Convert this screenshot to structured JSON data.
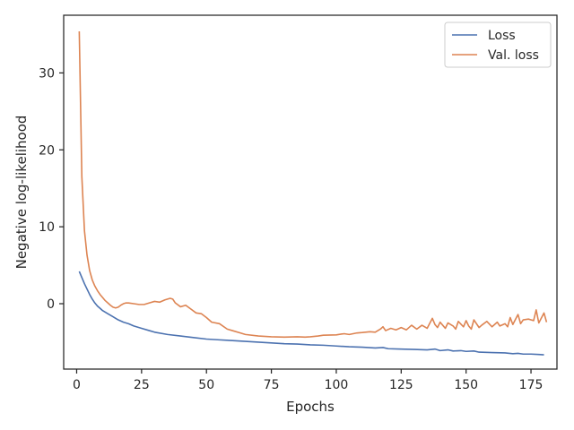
{
  "chart_data": {
    "type": "line",
    "title": "",
    "xlabel": "Epochs",
    "ylabel": "Negative log-likelihood",
    "xlim": [
      -5,
      185
    ],
    "ylim": [
      -8.5,
      37.5
    ],
    "xticks": [
      0,
      25,
      50,
      75,
      100,
      125,
      150,
      175
    ],
    "yticks": [
      0,
      10,
      20,
      30
    ],
    "grid": false,
    "legend_position": "top-right",
    "series": [
      {
        "name": "Loss",
        "color": "#4c72b0",
        "points": [
          [
            1,
            4.2
          ],
          [
            2,
            3.4
          ],
          [
            3,
            2.6
          ],
          [
            4,
            1.9
          ],
          [
            5,
            1.2
          ],
          [
            6,
            0.6
          ],
          [
            7,
            0.1
          ],
          [
            8,
            -0.3
          ],
          [
            9,
            -0.6
          ],
          [
            10,
            -0.9
          ],
          [
            12,
            -1.3
          ],
          [
            14,
            -1.7
          ],
          [
            16,
            -2.1
          ],
          [
            18,
            -2.4
          ],
          [
            20,
            -2.6
          ],
          [
            22,
            -2.9
          ],
          [
            25,
            -3.2
          ],
          [
            28,
            -3.5
          ],
          [
            30,
            -3.7
          ],
          [
            35,
            -4.0
          ],
          [
            40,
            -4.2
          ],
          [
            45,
            -4.4
          ],
          [
            50,
            -4.6
          ],
          [
            55,
            -4.7
          ],
          [
            60,
            -4.8
          ],
          [
            65,
            -4.9
          ],
          [
            70,
            -5.0
          ],
          [
            75,
            -5.1
          ],
          [
            80,
            -5.2
          ],
          [
            85,
            -5.25
          ],
          [
            90,
            -5.35
          ],
          [
            95,
            -5.4
          ],
          [
            100,
            -5.5
          ],
          [
            105,
            -5.6
          ],
          [
            110,
            -5.65
          ],
          [
            115,
            -5.75
          ],
          [
            118,
            -5.7
          ],
          [
            120,
            -5.85
          ],
          [
            125,
            -5.9
          ],
          [
            130,
            -5.95
          ],
          [
            135,
            -6.0
          ],
          [
            138,
            -5.9
          ],
          [
            140,
            -6.1
          ],
          [
            143,
            -6.0
          ],
          [
            145,
            -6.15
          ],
          [
            148,
            -6.1
          ],
          [
            150,
            -6.2
          ],
          [
            153,
            -6.15
          ],
          [
            155,
            -6.3
          ],
          [
            160,
            -6.35
          ],
          [
            165,
            -6.4
          ],
          [
            168,
            -6.5
          ],
          [
            170,
            -6.45
          ],
          [
            172,
            -6.55
          ],
          [
            175,
            -6.55
          ],
          [
            178,
            -6.6
          ],
          [
            180,
            -6.65
          ]
        ]
      },
      {
        "name": "Val. loss",
        "color": "#dd8452",
        "points": [
          [
            1,
            35.4
          ],
          [
            2,
            16.5
          ],
          [
            3,
            9.5
          ],
          [
            4,
            6.3
          ],
          [
            5,
            4.3
          ],
          [
            6,
            3.1
          ],
          [
            7,
            2.3
          ],
          [
            8,
            1.7
          ],
          [
            9,
            1.2
          ],
          [
            10,
            0.8
          ],
          [
            11,
            0.4
          ],
          [
            12,
            0.1
          ],
          [
            13,
            -0.2
          ],
          [
            14,
            -0.45
          ],
          [
            15,
            -0.55
          ],
          [
            16,
            -0.45
          ],
          [
            17,
            -0.2
          ],
          [
            18,
            0.0
          ],
          [
            19,
            0.1
          ],
          [
            20,
            0.1
          ],
          [
            22,
            0.0
          ],
          [
            24,
            -0.1
          ],
          [
            26,
            -0.1
          ],
          [
            28,
            0.1
          ],
          [
            30,
            0.3
          ],
          [
            32,
            0.2
          ],
          [
            34,
            0.5
          ],
          [
            36,
            0.7
          ],
          [
            37,
            0.6
          ],
          [
            38,
            0.1
          ],
          [
            40,
            -0.4
          ],
          [
            42,
            -0.2
          ],
          [
            44,
            -0.7
          ],
          [
            46,
            -1.2
          ],
          [
            48,
            -1.3
          ],
          [
            50,
            -1.8
          ],
          [
            52,
            -2.4
          ],
          [
            55,
            -2.6
          ],
          [
            58,
            -3.3
          ],
          [
            60,
            -3.5
          ],
          [
            63,
            -3.8
          ],
          [
            65,
            -4.0
          ],
          [
            70,
            -4.2
          ],
          [
            75,
            -4.3
          ],
          [
            80,
            -4.35
          ],
          [
            85,
            -4.3
          ],
          [
            88,
            -4.35
          ],
          [
            90,
            -4.3
          ],
          [
            93,
            -4.2
          ],
          [
            95,
            -4.1
          ],
          [
            100,
            -4.05
          ],
          [
            103,
            -3.9
          ],
          [
            105,
            -4.0
          ],
          [
            108,
            -3.8
          ],
          [
            110,
            -3.75
          ],
          [
            113,
            -3.65
          ],
          [
            115,
            -3.7
          ],
          [
            117,
            -3.3
          ],
          [
            118,
            -3.0
          ],
          [
            119,
            -3.5
          ],
          [
            121,
            -3.2
          ],
          [
            123,
            -3.4
          ],
          [
            125,
            -3.1
          ],
          [
            127,
            -3.4
          ],
          [
            129,
            -2.8
          ],
          [
            131,
            -3.3
          ],
          [
            133,
            -2.8
          ],
          [
            135,
            -3.2
          ],
          [
            137,
            -1.9
          ],
          [
            138,
            -2.7
          ],
          [
            139,
            -3.1
          ],
          [
            140,
            -2.4
          ],
          [
            141,
            -2.8
          ],
          [
            142,
            -3.2
          ],
          [
            143,
            -2.5
          ],
          [
            145,
            -2.9
          ],
          [
            146,
            -3.3
          ],
          [
            147,
            -2.3
          ],
          [
            149,
            -3.0
          ],
          [
            150,
            -2.2
          ],
          [
            151,
            -2.9
          ],
          [
            152,
            -3.3
          ],
          [
            153,
            -2.1
          ],
          [
            155,
            -3.1
          ],
          [
            156,
            -2.8
          ],
          [
            158,
            -2.3
          ],
          [
            160,
            -3.0
          ],
          [
            162,
            -2.4
          ],
          [
            163,
            -2.9
          ],
          [
            165,
            -2.6
          ],
          [
            166,
            -3.0
          ],
          [
            167,
            -1.8
          ],
          [
            168,
            -2.7
          ],
          [
            170,
            -1.4
          ],
          [
            171,
            -2.6
          ],
          [
            172,
            -2.1
          ],
          [
            174,
            -2.0
          ],
          [
            176,
            -2.2
          ],
          [
            177,
            -0.8
          ],
          [
            178,
            -2.5
          ],
          [
            180,
            -1.2
          ],
          [
            181,
            -2.4
          ]
        ]
      }
    ]
  }
}
